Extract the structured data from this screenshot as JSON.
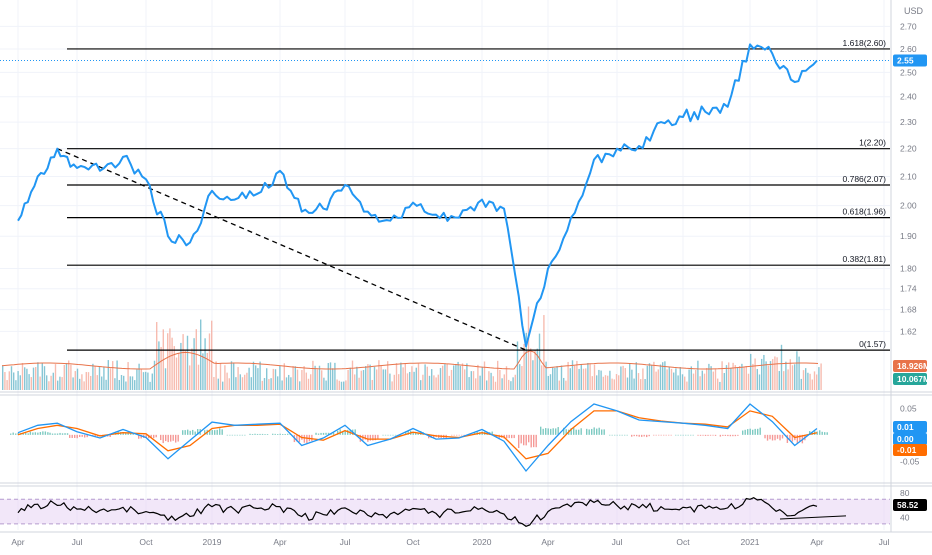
{
  "currency_label": "USD",
  "colors": {
    "price": "#2196f3",
    "fib": "#000000",
    "vol_up": "#5fb3c7",
    "vol_down": "#f4a596",
    "vol_ma": "#e8734a",
    "macd": "#2196f3",
    "signal": "#ff6d00",
    "rsi": "#000000",
    "rsi_band": "#e9d7f5",
    "badge_price": "#2196f3",
    "badge_vol_ma": "#e8734a",
    "badge_vol": "#26a69a",
    "badge_neg": "#ff6d00"
  },
  "chart_data": {
    "type": "line",
    "x_ticks": [
      "Apr",
      "Jul",
      "Oct",
      "2019",
      "Apr",
      "Jul",
      "Oct",
      "2020",
      "Apr",
      "Jul",
      "Oct",
      "2021",
      "Apr",
      "Jul"
    ],
    "price_axis": {
      "ticks": [
        "2.70",
        "2.60",
        "2.50",
        "2.40",
        "2.30",
        "2.20",
        "2.10",
        "2.00",
        "1.90",
        "1.80",
        "1.74",
        "1.68",
        "1.62"
      ],
      "scale": "log",
      "ylim": [
        1.56,
        2.74
      ]
    },
    "last_price": "2.55",
    "fib_levels": [
      {
        "label": "1.618(2.60)",
        "value": 2.6
      },
      {
        "label": "1(2.20)",
        "value": 2.2
      },
      {
        "label": "0.786(2.07)",
        "value": 2.07
      },
      {
        "label": "0.618(1.96)",
        "value": 1.96
      },
      {
        "label": "0.382(1.81)",
        "value": 1.81
      },
      {
        "label": "0(1.57)",
        "value": 1.57
      }
    ],
    "trend_line": {
      "from": {
        "time": "2018-06",
        "value": 2.2
      },
      "to": {
        "time": "2020-03",
        "value": 1.57
      }
    },
    "series": [
      {
        "values": [
          {
            "time": "2018-04",
            "value": 1.95
          },
          {
            "time": "2018-05",
            "value": 2.1
          },
          {
            "time": "2018-06",
            "value": 2.2
          },
          {
            "time": "2018-07",
            "value": 2.13
          },
          {
            "time": "2018-08",
            "value": 2.12
          },
          {
            "time": "2018-09",
            "value": 2.17
          },
          {
            "time": "2018-10",
            "value": 2.09
          },
          {
            "time": "2018-11",
            "value": 1.9
          },
          {
            "time": "2018-12",
            "value": 1.88
          },
          {
            "time": "2019-01",
            "value": 2.05
          },
          {
            "time": "2019-02",
            "value": 2.02
          },
          {
            "time": "2019-03",
            "value": 2.04
          },
          {
            "time": "2019-04",
            "value": 2.12
          },
          {
            "time": "2019-05",
            "value": 1.98
          },
          {
            "time": "2019-06",
            "value": 1.99
          },
          {
            "time": "2019-07",
            "value": 2.07
          },
          {
            "time": "2019-08",
            "value": 1.98
          },
          {
            "time": "2019-09",
            "value": 1.95
          },
          {
            "time": "2019-10",
            "value": 2.01
          },
          {
            "time": "2019-11",
            "value": 1.97
          },
          {
            "time": "2019-12",
            "value": 1.96
          },
          {
            "time": "2020-01",
            "value": 2.02
          },
          {
            "time": "2020-02",
            "value": 1.99
          },
          {
            "time": "2020-03",
            "value": 1.58
          },
          {
            "time": "2020-04",
            "value": 1.8
          },
          {
            "time": "2020-05",
            "value": 1.96
          },
          {
            "time": "2020-06",
            "value": 2.16
          },
          {
            "time": "2020-07",
            "value": 2.2
          },
          {
            "time": "2020-08",
            "value": 2.21
          },
          {
            "time": "2020-09",
            "value": 2.3
          },
          {
            "time": "2020-10",
            "value": 2.32
          },
          {
            "time": "2020-11",
            "value": 2.34
          },
          {
            "time": "2020-12",
            "value": 2.36
          },
          {
            "time": "2021-01",
            "value": 2.62
          },
          {
            "time": "2021-02",
            "value": 2.58
          },
          {
            "time": "2021-03",
            "value": 2.46
          },
          {
            "time": "2021-04",
            "value": 2.55
          }
        ]
      }
    ],
    "volume": {
      "ma_badge": "18.926M",
      "value_badge": "10.067M"
    },
    "macd": {
      "ticks": [
        "0.05",
        "0.00",
        "-0.05"
      ],
      "ylim": [
        -0.085,
        0.075
      ],
      "badges": [
        "0.01",
        "0.00",
        "-0.01"
      ],
      "macd_values": [
        0.004,
        0.018,
        0.022,
        0.006,
        -0.006,
        0.01,
        -0.005,
        -0.045,
        -0.01,
        0.024,
        0.018,
        0.02,
        0.022,
        -0.02,
        -0.006,
        0.018,
        -0.02,
        -0.008,
        0.012,
        -0.008,
        -0.006,
        0.01,
        -0.012,
        -0.068,
        -0.02,
        0.025,
        0.058,
        0.045,
        0.028,
        0.025,
        0.022,
        0.018,
        0.012,
        0.058,
        0.025,
        -0.02,
        0.012
      ],
      "signal_values": [
        0.0,
        0.012,
        0.018,
        0.012,
        -0.002,
        0.004,
        0.002,
        -0.03,
        -0.02,
        0.012,
        0.018,
        0.018,
        0.02,
        -0.005,
        -0.01,
        0.008,
        -0.008,
        -0.008,
        0.005,
        -0.002,
        -0.005,
        0.004,
        -0.004,
        -0.045,
        -0.035,
        0.01,
        0.045,
        0.045,
        0.032,
        0.026,
        0.022,
        0.02,
        0.015,
        0.045,
        0.035,
        -0.005,
        0.004
      ]
    },
    "rsi": {
      "ticks": [
        "80",
        "40"
      ],
      "ylim": [
        20,
        90
      ],
      "band": [
        30,
        70
      ],
      "badge": "58.52",
      "values": [
        48,
        62,
        60,
        54,
        52,
        57,
        50,
        36,
        42,
        58,
        53,
        55,
        58,
        42,
        45,
        56,
        44,
        46,
        55,
        47,
        48,
        56,
        46,
        26,
        50,
        58,
        65,
        60,
        56,
        58,
        57,
        55,
        56,
        70,
        56,
        44,
        58.52
      ]
    }
  }
}
